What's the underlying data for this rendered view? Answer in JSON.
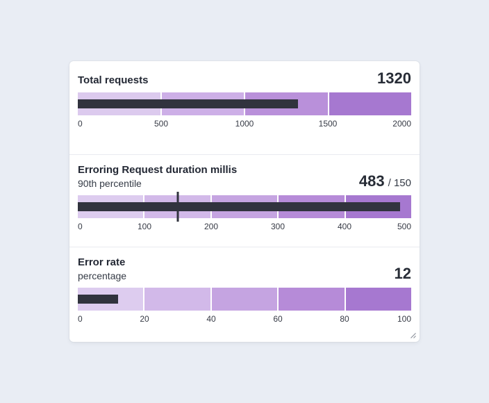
{
  "theme": {
    "page_bg": "#e9edf4",
    "card_bg": "#ffffff",
    "divider": "#e9eaf0",
    "title_color": "#232834",
    "subtitle_color": "#343a45",
    "value_color": "#272c36",
    "tick_color": "#363a45",
    "value_bar_color": "#31333e",
    "target_marker_color": "#31333e"
  },
  "chart_data": [
    {
      "type": "bullet",
      "title": "Total requests",
      "subtitle": "",
      "value": 1320,
      "value_label": "1320",
      "target": null,
      "target_label": "",
      "domain": [
        0,
        2000
      ],
      "ticks": [
        "0",
        "500",
        "1000",
        "1500",
        "2000"
      ],
      "tick_values": [
        0,
        500,
        1000,
        1500,
        2000
      ],
      "bands": [
        {
          "from": 0,
          "to": 500,
          "color": "#dccaee"
        },
        {
          "from": 500,
          "to": 1000,
          "color": "#cdafe7"
        },
        {
          "from": 1000,
          "to": 1500,
          "color": "#b990da"
        },
        {
          "from": 1500,
          "to": 2000,
          "color": "#a678d0"
        }
      ]
    },
    {
      "type": "bullet",
      "title": "Erroring Request duration millis",
      "subtitle": "90th percentile",
      "value": 483,
      "value_label": "483",
      "target": 150,
      "target_label": "/ 150",
      "domain": [
        0,
        500
      ],
      "ticks": [
        "0",
        "100",
        "200",
        "300",
        "400",
        "500"
      ],
      "tick_values": [
        0,
        100,
        200,
        300,
        400,
        500
      ],
      "bands": [
        {
          "from": 0,
          "to": 100,
          "color": "#ddccef"
        },
        {
          "from": 100,
          "to": 200,
          "color": "#d2b9e9"
        },
        {
          "from": 200,
          "to": 300,
          "color": "#c5a4e1"
        },
        {
          "from": 300,
          "to": 400,
          "color": "#b68bd8"
        },
        {
          "from": 400,
          "to": 500,
          "color": "#a678d0"
        }
      ]
    },
    {
      "type": "bullet",
      "title": "Error rate",
      "subtitle": "percentage",
      "value": 12,
      "value_label": "12",
      "target": null,
      "target_label": "",
      "domain": [
        0,
        100
      ],
      "ticks": [
        "0",
        "20",
        "40",
        "60",
        "80",
        "100"
      ],
      "tick_values": [
        0,
        20,
        40,
        60,
        80,
        100
      ],
      "bands": [
        {
          "from": 0,
          "to": 20,
          "color": "#ddccef"
        },
        {
          "from": 20,
          "to": 40,
          "color": "#d2b9e9"
        },
        {
          "from": 40,
          "to": 60,
          "color": "#c5a4e1"
        },
        {
          "from": 60,
          "to": 80,
          "color": "#b68bd8"
        },
        {
          "from": 80,
          "to": 100,
          "color": "#a678d0"
        }
      ]
    }
  ]
}
